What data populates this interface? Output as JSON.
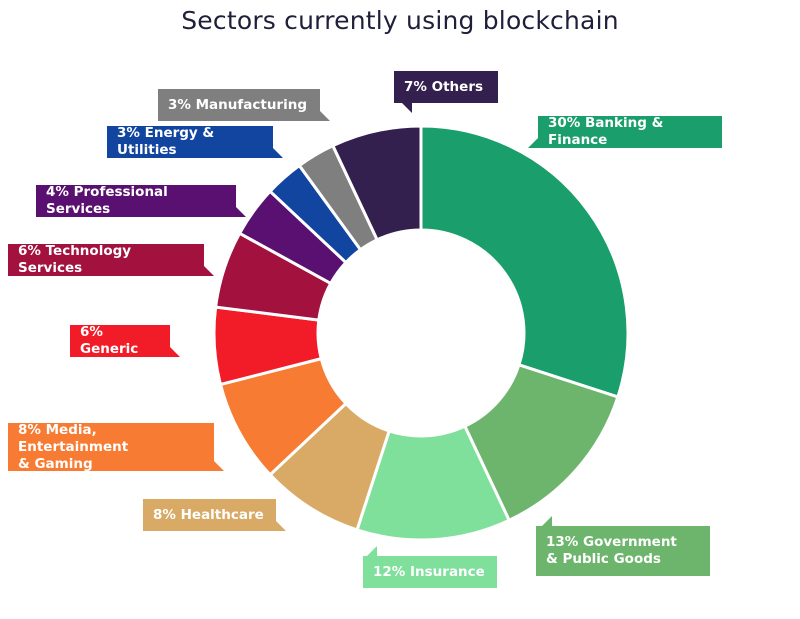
{
  "chart_data": {
    "type": "pie",
    "title": "Sectors currently using blockchain",
    "slices": [
      {
        "label": "30% Banking & Finance",
        "value": 30,
        "color": "#1a9e6b"
      },
      {
        "label": "13% Government\n& Public Goods",
        "value": 13,
        "color": "#6db56d"
      },
      {
        "label": "12% Insurance",
        "value": 12,
        "color": "#7ee09a"
      },
      {
        "label": "8% Healthcare",
        "value": 8,
        "color": "#d9a966"
      },
      {
        "label": "8% Media, Entertainment\n& Gaming",
        "value": 8,
        "color": "#f77b32"
      },
      {
        "label": "6% Generic",
        "value": 6,
        "color": "#f21c28"
      },
      {
        "label": "6% Technology Services",
        "value": 6,
        "color": "#a3123f"
      },
      {
        "label": "4% Professional Services",
        "value": 4,
        "color": "#5a1070"
      },
      {
        "label": "3% Energy & Utilities",
        "value": 3,
        "color": "#1145a0"
      },
      {
        "label": "3% Manufacturing",
        "value": 3,
        "color": "#7f7f7f"
      },
      {
        "label": "7% Others",
        "value": 7,
        "color": "#33204f"
      }
    ]
  }
}
